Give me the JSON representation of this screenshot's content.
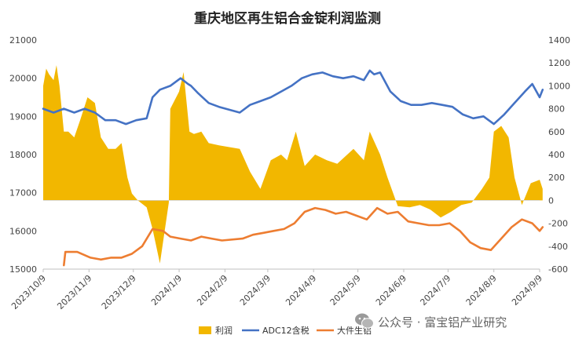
{
  "chart_data": {
    "type": "area+line",
    "title": "重庆地区再生铝合金锭利润监测",
    "x_ticks": [
      "2023/10/9",
      "2023/11/9",
      "2023/12/9",
      "2024/1/9",
      "2024/2/9",
      "2024/3/9",
      "2024/4/9",
      "2024/5/9",
      "2024/6/9",
      "2024/7/9",
      "2024/8/9",
      "2024/9/9"
    ],
    "left_axis": {
      "ticks": [
        15000,
        16000,
        17000,
        18000,
        19000,
        20000,
        21000
      ],
      "ylim": [
        15000,
        21000
      ]
    },
    "right_axis": {
      "ticks": [
        -600,
        -400,
        -200,
        0,
        200,
        400,
        600,
        800,
        1000,
        1200,
        1400
      ],
      "ylim": [
        -600,
        1400
      ]
    },
    "legend_placement": "bottom-center",
    "series": [
      {
        "name": "利润",
        "type": "area",
        "axis": "right",
        "color": "#F2B700",
        "x_dates": [
          "2023/10/9",
          "2023/10/11",
          "2023/10/13",
          "2023/10/16",
          "2023/10/18",
          "2023/10/20",
          "2023/10/23",
          "2023/10/26",
          "2023/10/30",
          "2023/11/3",
          "2023/11/8",
          "2023/11/13",
          "2023/11/17",
          "2023/11/22",
          "2023/11/27",
          "2023/12/1",
          "2023/12/5",
          "2023/12/8",
          "2023/12/12",
          "2023/12/18",
          "2023/12/22",
          "2023/12/27",
          "2024/1/2",
          "2024/1/3",
          "2024/1/9",
          "2024/1/12",
          "2024/1/16",
          "2024/1/19",
          "2024/1/24",
          "2024/1/29",
          "2024/2/5",
          "2024/2/19",
          "2024/2/26",
          "2024/3/4",
          "2024/3/11",
          "2024/3/18",
          "2024/3/22",
          "2024/3/28",
          "2024/4/3",
          "2024/4/10",
          "2024/4/18",
          "2024/4/25",
          "2024/5/6",
          "2024/5/13",
          "2024/5/17",
          "2024/5/24",
          "2024/5/29",
          "2024/6/5",
          "2024/6/13",
          "2024/6/20",
          "2024/6/27",
          "2024/7/4",
          "2024/7/11",
          "2024/7/18",
          "2024/7/25",
          "2024/8/1",
          "2024/8/6",
          "2024/8/9",
          "2024/8/14",
          "2024/8/19",
          "2024/8/23",
          "2024/8/28",
          "2024/9/3",
          "2024/9/9",
          "2024/9/11"
        ],
        "values": [
          1000,
          1150,
          1100,
          1050,
          1180,
          1000,
          600,
          600,
          550,
          700,
          900,
          850,
          550,
          450,
          450,
          500,
          200,
          60,
          0,
          -60,
          -250,
          -550,
          -20,
          800,
          950,
          1120,
          600,
          580,
          600,
          500,
          480,
          450,
          250,
          100,
          350,
          400,
          350,
          600,
          300,
          400,
          350,
          320,
          450,
          350,
          600,
          400,
          200,
          -50,
          -60,
          -40,
          -80,
          -150,
          -100,
          -40,
          -20,
          100,
          200,
          600,
          650,
          550,
          200,
          -40,
          150,
          180,
          100
        ]
      },
      {
        "name": "ADC12含税",
        "type": "line",
        "axis": "left",
        "color": "#4472C4",
        "x_dates": [
          "2023/10/9",
          "2023/10/16",
          "2023/10/23",
          "2023/10/30",
          "2023/11/6",
          "2023/11/13",
          "2023/11/20",
          "2023/11/27",
          "2023/12/4",
          "2023/12/11",
          "2023/12/18",
          "2023/12/22",
          "2023/12/27",
          "2024/1/3",
          "2024/1/10",
          "2024/1/15",
          "2024/1/17",
          "2024/1/22",
          "2024/1/29",
          "2024/2/5",
          "2024/2/19",
          "2024/2/26",
          "2024/3/4",
          "2024/3/11",
          "2024/3/18",
          "2024/3/25",
          "2024/4/1",
          "2024/4/8",
          "2024/4/15",
          "2024/4/22",
          "2024/4/29",
          "2024/5/6",
          "2024/5/13",
          "2024/5/17",
          "2024/5/20",
          "2024/5/24",
          "2024/5/31",
          "2024/6/7",
          "2024/6/14",
          "2024/6/21",
          "2024/6/28",
          "2024/7/5",
          "2024/7/12",
          "2024/7/19",
          "2024/7/26",
          "2024/8/2",
          "2024/8/9",
          "2024/8/16",
          "2024/8/23",
          "2024/8/30",
          "2024/9/4",
          "2024/9/9",
          "2024/9/11"
        ],
        "values": [
          19200,
          19100,
          19200,
          19100,
          19200,
          19100,
          18900,
          18900,
          18800,
          18900,
          18950,
          19500,
          19700,
          19800,
          20000,
          19850,
          19800,
          19600,
          19350,
          19250,
          19100,
          19300,
          19400,
          19500,
          19650,
          19800,
          20000,
          20100,
          20150,
          20050,
          20000,
          20050,
          19950,
          20200,
          20100,
          20150,
          19650,
          19400,
          19300,
          19300,
          19350,
          19300,
          19250,
          19050,
          18950,
          19000,
          18800,
          19050,
          19350,
          19650,
          19850,
          19500,
          19700
        ]
      },
      {
        "name": "大件生铝",
        "type": "line",
        "axis": "left",
        "color": "#ED7D31",
        "x_dates": [
          "2023/10/23",
          "2023/10/24",
          "2023/11/1",
          "2023/11/10",
          "2023/11/17",
          "2023/11/24",
          "2023/12/1",
          "2023/12/8",
          "2023/12/15",
          "2023/12/22",
          "2023/12/29",
          "2024/1/3",
          "2024/1/10",
          "2024/1/17",
          "2024/1/24",
          "2024/1/31",
          "2024/2/7",
          "2024/2/21",
          "2024/2/28",
          "2024/3/6",
          "2024/3/13",
          "2024/3/20",
          "2024/3/27",
          "2024/4/3",
          "2024/4/10",
          "2024/4/17",
          "2024/4/24",
          "2024/5/1",
          "2024/5/8",
          "2024/5/15",
          "2024/5/22",
          "2024/5/29",
          "2024/6/5",
          "2024/6/12",
          "2024/6/19",
          "2024/6/26",
          "2024/7/3",
          "2024/7/10",
          "2024/7/17",
          "2024/7/24",
          "2024/7/31",
          "2024/8/7",
          "2024/8/14",
          "2024/8/21",
          "2024/8/28",
          "2024/9/4",
          "2024/9/9",
          "2024/9/11"
        ],
        "values": [
          15100,
          15450,
          15450,
          15300,
          15250,
          15300,
          15300,
          15400,
          15600,
          16050,
          16000,
          15850,
          15800,
          15750,
          15850,
          15800,
          15750,
          15800,
          15900,
          15950,
          16000,
          16050,
          16200,
          16500,
          16600,
          16550,
          16450,
          16500,
          16400,
          16300,
          16600,
          16450,
          16500,
          16250,
          16200,
          16150,
          16150,
          16200,
          16000,
          15700,
          15550,
          15500,
          15800,
          16100,
          16300,
          16200,
          16000,
          16100
        ]
      }
    ]
  },
  "watermark": {
    "icon": "wechat-icon",
    "text": "公众号 · 富宝铝产业研究"
  }
}
